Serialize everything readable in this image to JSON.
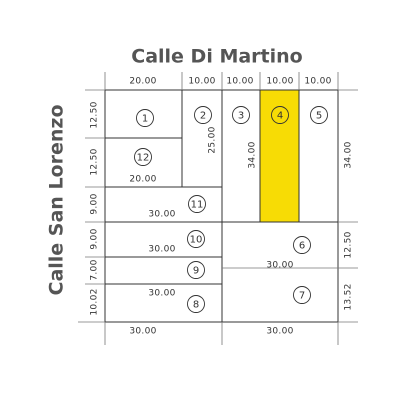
{
  "streets": {
    "top": "Calle Di Martino",
    "left": "Calle San Lorenzo"
  },
  "dimensions": [
    "20.00",
    "10.00",
    "10.00",
    "10.00",
    "10.00",
    "12.50",
    "12.50",
    "9.00",
    "9.00",
    "7.00",
    "10.02",
    "34.00",
    "12.50",
    "13.52",
    "25.00",
    "34.00",
    "20.00",
    "30.00",
    "30.00",
    "30.00",
    "30.00",
    "30.00",
    "30.00"
  ],
  "lots": [
    "1",
    "2",
    "3",
    "4",
    "5",
    "12",
    "11",
    "10",
    "9",
    "8",
    "6",
    "7"
  ]
}
